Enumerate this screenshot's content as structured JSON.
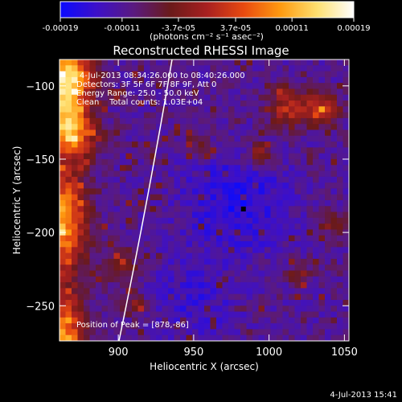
{
  "colorbar": {
    "ticks": [
      "-0.00019",
      "-0.00011",
      "-3.7e-05",
      "3.7e-05",
      "0.00011",
      "0.00019"
    ],
    "tick_values": [
      -0.00019,
      -0.00011,
      -3.7e-05,
      3.7e-05,
      0.00011,
      0.00019
    ],
    "range": [
      -0.00019,
      0.00019
    ],
    "units": "(photons cm⁻² s⁻¹ asec⁻²)",
    "colors": [
      "#0a0aff",
      "#3d10c8",
      "#5a1a80",
      "#6a1a1a",
      "#a82020",
      "#e84a10",
      "#ff9a10",
      "#ffe070",
      "#ffffff"
    ]
  },
  "chart_data": {
    "type": "heatmap",
    "title": "Reconstructed RHESSI Image",
    "xlabel": "Heliocentric X (arcsec)",
    "ylabel": "Heliocentric Y (arcsec)",
    "xlim": [
      861,
      1053
    ],
    "ylim": [
      -274,
      -82
    ],
    "xticks": [
      900,
      950,
      1000,
      1050
    ],
    "yticks": [
      -100,
      -150,
      -200,
      -250
    ],
    "annotations": [
      "4-Jul-2013 08:34:26.000 to 08:40:26.000",
      "Detectors: 3F 5F 6F 7F 8F 9F, Att 0",
      "Energy Range: 25.0 - 50.0 keV",
      "Clean    Total counts: 1.03E+04"
    ],
    "peak_label": "Position of Peak = [878,-86]",
    "limb_color": "#ffffff",
    "grid": false
  },
  "footer": {
    "timestamp": "4-Jul-2013 15:41"
  }
}
